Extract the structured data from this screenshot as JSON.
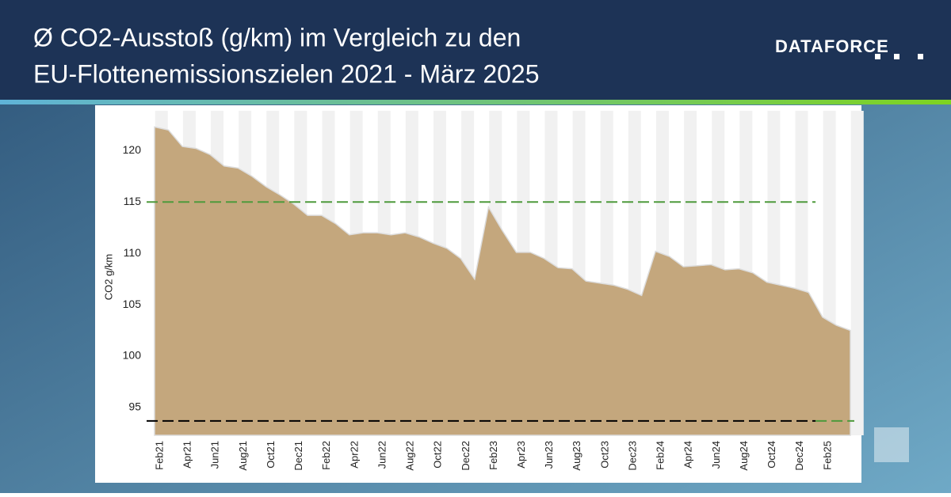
{
  "chart_data": {
    "type": "area",
    "title": [
      "Ø CO2-Ausstoß (g/km) im Vergleich zu den",
      "EU-Flottenemissionszielen 2021 - März 2025"
    ],
    "logo": "DATAFORCE",
    "y_label": "CO2 g/km",
    "categories": [
      "Feb21",
      null,
      "Apr21",
      null,
      "Jun21",
      null,
      "Aug21",
      null,
      "Oct21",
      null,
      "Dec21",
      null,
      "Feb22",
      null,
      "Apr22",
      null,
      "Jun22",
      null,
      "Aug22",
      null,
      "Oct22",
      null,
      "Dec22",
      null,
      "Feb23",
      null,
      "Apr23",
      null,
      "Jun23",
      null,
      "Aug23",
      null,
      "Oct23",
      null,
      "Dec23",
      null,
      "Feb24",
      null,
      "Apr24",
      null,
      "Jun24",
      null,
      "Aug24",
      null,
      "Oct24",
      null,
      "Dec24",
      null,
      "Feb25",
      null,
      null
    ],
    "series": [
      {
        "color": "#c4a77d",
        "values": [
          122.3,
          122.0,
          120.4,
          120.2,
          119.6,
          118.5,
          118.3,
          117.5,
          116.5,
          115.7,
          114.8,
          113.7,
          113.7,
          112.9,
          111.8,
          112.0,
          112.0,
          111.8,
          112.0,
          111.6,
          111.0,
          110.5,
          109.5,
          107.5,
          114.5,
          112.2,
          110.1,
          110.1,
          109.5,
          108.6,
          108.5,
          107.3,
          107.1,
          106.9,
          106.5,
          105.9,
          110.2,
          109.7,
          108.7,
          108.8,
          108.9,
          108.4,
          108.5,
          108.1,
          107.2,
          106.9,
          106.6,
          106.2,
          103.8,
          103.0,
          102.5
        ]
      }
    ],
    "reference_lines": [
      {
        "value": 115,
        "color": "#4e9a3c"
      },
      {
        "value": 93.7,
        "color": "#000000",
        "extension_color": "#4e9a3c"
      }
    ],
    "ylim": [
      92.3,
      123.1
    ],
    "yticks": [
      95,
      100,
      105,
      110,
      115,
      120
    ],
    "stripes": true
  }
}
